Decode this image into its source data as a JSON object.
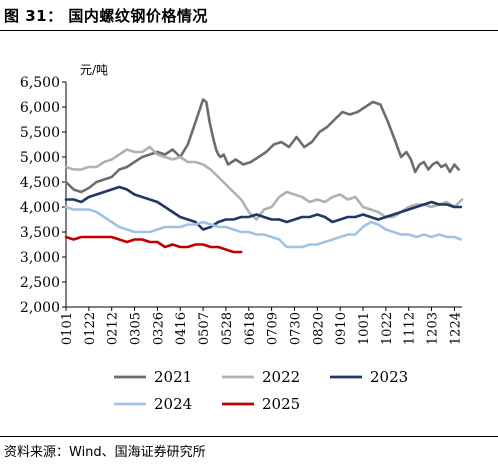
{
  "figure": {
    "title": "图 31：  国内螺纹钢价格情况"
  },
  "source": "资料来源：Wind、国海证券研究所",
  "chart_data": {
    "type": "line",
    "unit_label": "元/吨",
    "ylim": [
      2000,
      6500
    ],
    "yticks": [
      "2,000",
      "2,500",
      "3,000",
      "3,500",
      "4,000",
      "4,500",
      "5,000",
      "5,500",
      "6,000",
      "6,500"
    ],
    "ytick_values": [
      2000,
      2500,
      3000,
      3500,
      4000,
      4500,
      5000,
      5500,
      6000,
      6500
    ],
    "x_tick_labels": [
      "0101",
      "0122",
      "0212",
      "0305",
      "0326",
      "0416",
      "0507",
      "0528",
      "0618",
      "0709",
      "0730",
      "0820",
      "0910",
      "1001",
      "1022",
      "1112",
      "1203",
      "1224"
    ],
    "x_day_range": [
      1,
      365
    ],
    "grid": false,
    "legend_position": "bottom",
    "series": [
      {
        "name": "2021",
        "color": "#6d6d6d",
        "x": [
          1,
          8,
          15,
          22,
          29,
          36,
          43,
          50,
          57,
          64,
          71,
          78,
          85,
          92,
          99,
          106,
          113,
          120,
          127,
          130,
          133,
          136,
          139,
          141,
          143,
          146,
          150,
          157,
          164,
          171,
          178,
          185,
          192,
          199,
          206,
          213,
          220,
          227,
          234,
          241,
          248,
          255,
          262,
          269,
          276,
          283,
          290,
          297,
          304,
          309,
          314,
          318,
          322,
          326,
          330,
          334,
          338,
          342,
          346,
          350,
          354,
          358,
          362
        ],
        "y": [
          4500,
          4350,
          4300,
          4380,
          4500,
          4550,
          4600,
          4750,
          4800,
          4900,
          5000,
          5050,
          5100,
          5050,
          5150,
          5000,
          5250,
          5700,
          6150,
          6100,
          5700,
          5400,
          5150,
          5050,
          5000,
          5050,
          4850,
          4950,
          4850,
          4900,
          5000,
          5100,
          5250,
          5300,
          5200,
          5400,
          5200,
          5300,
          5500,
          5600,
          5750,
          5900,
          5850,
          5900,
          6000,
          6100,
          6050,
          5700,
          5300,
          5000,
          5100,
          4950,
          4700,
          4850,
          4900,
          4750,
          4850,
          4900,
          4800,
          4850,
          4700,
          4850,
          4750
        ]
      },
      {
        "name": "2022",
        "color": "#b1b1b1",
        "x": [
          1,
          8,
          15,
          22,
          29,
          36,
          43,
          50,
          57,
          64,
          71,
          78,
          85,
          92,
          99,
          106,
          113,
          120,
          127,
          134,
          141,
          148,
          155,
          162,
          169,
          176,
          183,
          190,
          197,
          204,
          211,
          218,
          225,
          232,
          239,
          246,
          253,
          260,
          267,
          274,
          281,
          288,
          295,
          302,
          309,
          316,
          323,
          330,
          337,
          344,
          351,
          358,
          365
        ],
        "y": [
          4800,
          4750,
          4750,
          4800,
          4800,
          4900,
          4950,
          5050,
          5150,
          5100,
          5100,
          5200,
          5050,
          5000,
          4950,
          5000,
          4900,
          4900,
          4850,
          4750,
          4600,
          4450,
          4300,
          4150,
          3900,
          3750,
          3950,
          4000,
          4200,
          4300,
          4250,
          4200,
          4100,
          4150,
          4100,
          4200,
          4250,
          4150,
          4200,
          4000,
          3950,
          3900,
          3800,
          3800,
          3900,
          4000,
          4050,
          4050,
          4000,
          4050,
          4100,
          4000,
          4150
        ]
      },
      {
        "name": "2023",
        "color": "#1f3864",
        "x": [
          1,
          8,
          15,
          22,
          29,
          36,
          43,
          50,
          57,
          64,
          71,
          78,
          85,
          92,
          99,
          106,
          113,
          120,
          127,
          134,
          141,
          148,
          155,
          162,
          169,
          176,
          183,
          190,
          197,
          204,
          211,
          218,
          225,
          232,
          239,
          246,
          253,
          260,
          267,
          274,
          281,
          288,
          295,
          302,
          309,
          316,
          323,
          330,
          337,
          344,
          351,
          358,
          364
        ],
        "y": [
          4150,
          4150,
          4100,
          4200,
          4250,
          4300,
          4350,
          4400,
          4350,
          4250,
          4200,
          4150,
          4100,
          4000,
          3900,
          3800,
          3750,
          3700,
          3550,
          3600,
          3700,
          3750,
          3750,
          3800,
          3800,
          3850,
          3800,
          3750,
          3750,
          3700,
          3750,
          3800,
          3800,
          3850,
          3800,
          3700,
          3750,
          3800,
          3800,
          3850,
          3800,
          3750,
          3800,
          3850,
          3900,
          3950,
          4000,
          4050,
          4100,
          4050,
          4050,
          4000,
          4000
        ]
      },
      {
        "name": "2024",
        "color": "#9dc3e6",
        "x": [
          1,
          8,
          15,
          22,
          29,
          36,
          43,
          50,
          57,
          64,
          71,
          78,
          85,
          92,
          99,
          106,
          113,
          120,
          127,
          134,
          141,
          148,
          155,
          162,
          169,
          176,
          183,
          190,
          197,
          204,
          211,
          218,
          225,
          232,
          239,
          246,
          253,
          260,
          267,
          274,
          281,
          288,
          295,
          302,
          309,
          316,
          323,
          330,
          337,
          344,
          351,
          358,
          364
        ],
        "y": [
          4000,
          3950,
          3950,
          3950,
          3900,
          3800,
          3700,
          3600,
          3550,
          3500,
          3500,
          3500,
          3550,
          3600,
          3600,
          3600,
          3650,
          3650,
          3700,
          3650,
          3600,
          3600,
          3550,
          3500,
          3500,
          3450,
          3450,
          3400,
          3350,
          3200,
          3200,
          3200,
          3250,
          3250,
          3300,
          3350,
          3400,
          3450,
          3450,
          3600,
          3700,
          3650,
          3550,
          3500,
          3450,
          3450,
          3400,
          3450,
          3400,
          3450,
          3400,
          3400,
          3350
        ]
      },
      {
        "name": "2025",
        "color": "#c00000",
        "x": [
          1,
          8,
          15,
          22,
          29,
          36,
          43,
          50,
          57,
          64,
          71,
          78,
          85,
          92,
          99,
          106,
          113,
          120,
          127,
          134,
          141,
          148,
          155,
          162
        ],
        "y": [
          3400,
          3350,
          3400,
          3400,
          3400,
          3400,
          3400,
          3350,
          3300,
          3350,
          3350,
          3300,
          3300,
          3200,
          3250,
          3200,
          3200,
          3250,
          3250,
          3200,
          3200,
          3150,
          3100,
          3100
        ]
      }
    ]
  }
}
